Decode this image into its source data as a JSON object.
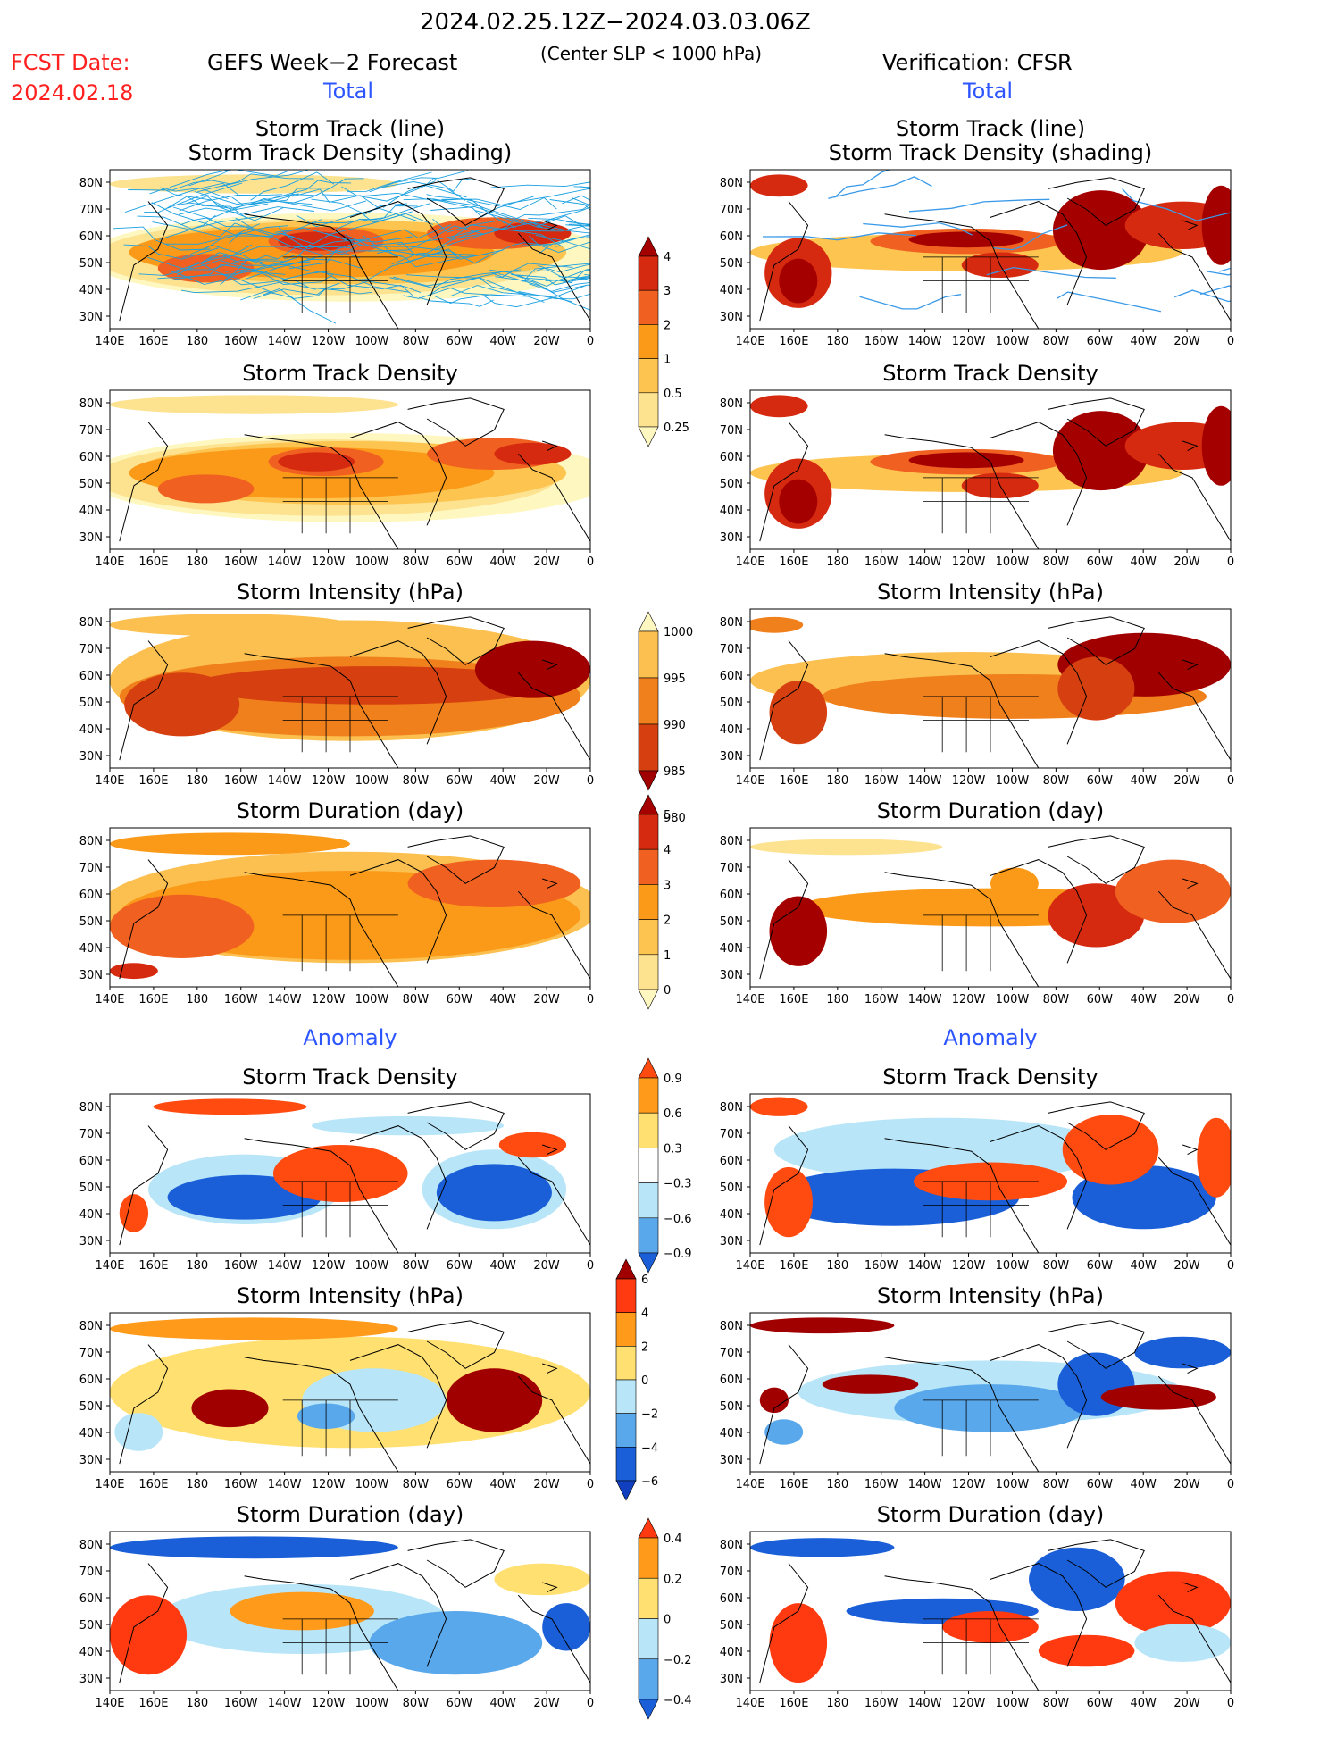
{
  "header": {
    "date_range": "2024.02.25.12Z−2024.03.03.06Z",
    "center_slp": "(Center SLP < 1000 hPa)",
    "fcst_label": "FCST Date:",
    "fcst_date": "2024.02.18",
    "left_title": "GEFS Week−2 Forecast",
    "right_title": "Verification: CFSR",
    "left_total": "Total",
    "right_total": "Total",
    "left_anomaly": "Anomaly",
    "right_anomaly": "Anomaly"
  },
  "panels": {
    "track_line_1": "Storm Track (line)",
    "track_line_2": "Storm Track Density (shading)",
    "density": "Storm Track Density",
    "intensity": "Storm Intensity (hPa)",
    "duration": "Storm Duration (day)"
  },
  "axes": {
    "lon_ticks": [
      "140E",
      "160E",
      "180",
      "160W",
      "140W",
      "120W",
      "100W",
      "80W",
      "60W",
      "40W",
      "20W",
      "0"
    ],
    "lat_ticks": [
      "80N",
      "70N",
      "60N",
      "50N",
      "40N",
      "30N"
    ]
  },
  "colorbars": {
    "density": {
      "labels": [
        "4",
        "3",
        "2",
        "1",
        "0.5",
        "0.25"
      ],
      "colors": [
        "#a50000",
        "#d62a10",
        "#f06020",
        "#fb9a18",
        "#fdc450",
        "#fde290",
        "#fff7c0"
      ]
    },
    "intensity": {
      "labels": [
        "1000",
        "995",
        "990",
        "985",
        "980"
      ],
      "colors": [
        "#fff7c0",
        "#fbc050",
        "#f0801c",
        "#d64010",
        "#a00000"
      ]
    },
    "duration": {
      "labels": [
        "5",
        "4",
        "3",
        "2",
        "1",
        "0"
      ],
      "colors": [
        "#a50000",
        "#d62a10",
        "#f06020",
        "#fb9a18",
        "#fdc450",
        "#fde290",
        "#fff7c0"
      ]
    },
    "anom_density": {
      "labels": [
        "0.9",
        "0.6",
        "0.3",
        "−0.3",
        "−0.6",
        "−0.9"
      ],
      "colors": [
        "#ff4a10",
        "#ff9a1a",
        "#ffe070",
        "#ffffff",
        "#b8e6f8",
        "#5aa8ec",
        "#1a5fd8"
      ]
    },
    "anom_intensity": {
      "labels": [
        "6",
        "4",
        "2",
        "0",
        "−2",
        "−4",
        "−6"
      ],
      "colors": [
        "#a00000",
        "#ff3a10",
        "#ff9a1a",
        "#ffe070",
        "#b8e6f8",
        "#5aa8ec",
        "#1a5fd8",
        "#1040c0"
      ]
    },
    "anom_duration": {
      "labels": [
        "0.4",
        "0.2",
        "0",
        "−0.2",
        "−0.4"
      ],
      "colors": [
        "#ff3a10",
        "#ff9a1a",
        "#ffe070",
        "#b8e6f8",
        "#5aa8ec",
        "#1a5fd8"
      ]
    }
  }
}
